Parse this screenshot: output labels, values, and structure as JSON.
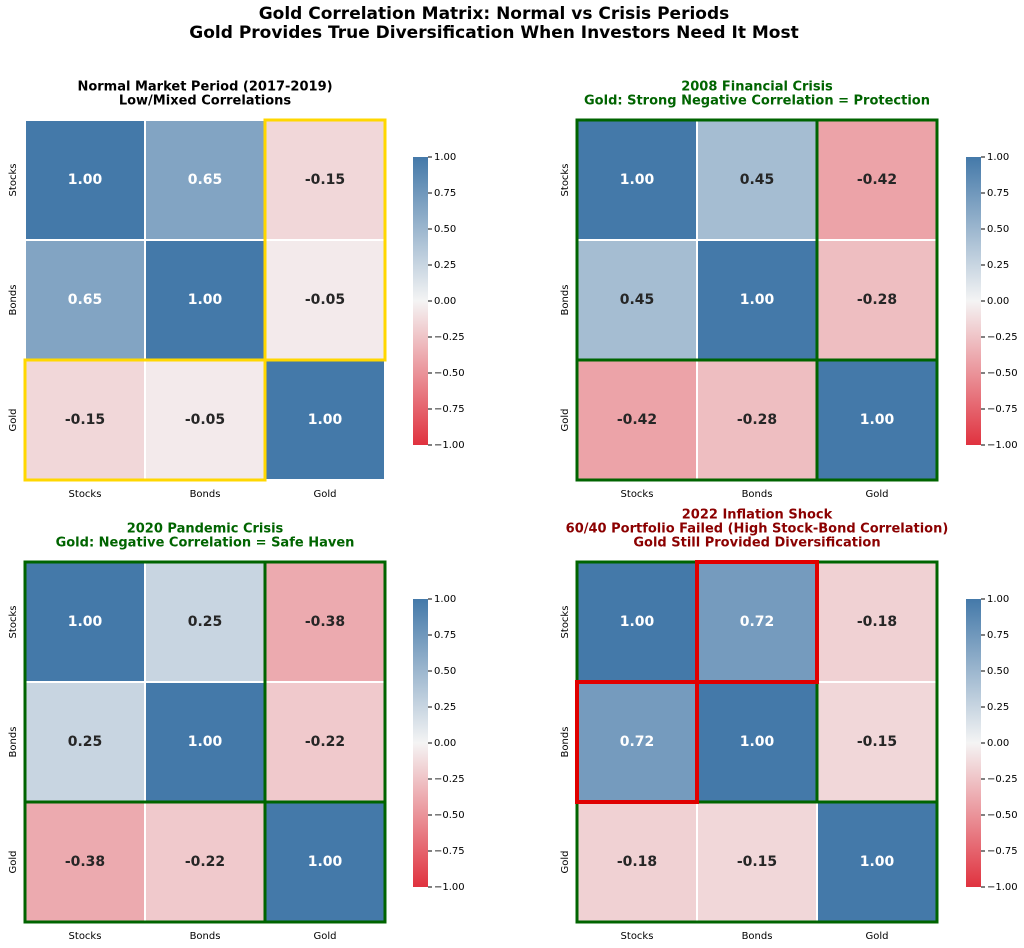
{
  "title": [
    "Gold Correlation Matrix: Normal vs Crisis Periods",
    "Gold Provides True Diversification When Investors Need It Most"
  ],
  "chart_data": [
    {
      "type": "heatmap",
      "title": [
        "Normal Market Period (2017-2019)",
        "Low/Mixed Correlations"
      ],
      "title_color": "#000000",
      "x": [
        "Stocks",
        "Bonds",
        "Gold"
      ],
      "y": [
        "Stocks",
        "Bonds",
        "Gold"
      ],
      "values": [
        [
          1,
          0.65,
          -0.15
        ],
        [
          0.65,
          1,
          -0.05
        ],
        [
          -0.15,
          -0.05,
          1
        ]
      ],
      "value_labels": [
        [
          "1.00",
          "0.65",
          "-0.15"
        ],
        [
          "0.65",
          "1.00",
          "-0.05"
        ],
        [
          "-0.15",
          "-0.05",
          "1.00"
        ]
      ],
      "colormap": [
        "#e0323f",
        "#f4f4f4",
        "#4479a9"
      ],
      "vlim": [
        -1,
        1
      ],
      "cbar_ticks": [
        {
          "value": 1,
          "label": "1.00"
        },
        {
          "value": 0.75,
          "label": "0.75"
        },
        {
          "value": 0.5,
          "label": "0.50"
        },
        {
          "value": 0.25,
          "label": "0.25"
        },
        {
          "value": 0,
          "label": "0.00"
        },
        {
          "value": -0.25,
          "label": "−0.25"
        },
        {
          "value": -0.5,
          "label": "−0.50"
        },
        {
          "value": -0.75,
          "label": "−0.75"
        },
        {
          "value": -1,
          "label": "−1.00"
        }
      ],
      "highlights": [
        {
          "color": "#ffd700",
          "rows": [
            0,
            1
          ],
          "cols": [
            2,
            2
          ]
        },
        {
          "color": "#ffd700",
          "rows": [
            2,
            2
          ],
          "cols": [
            0,
            1
          ]
        }
      ]
    },
    {
      "type": "heatmap",
      "title": [
        "2008 Financial Crisis",
        "Gold: Strong Negative Correlation = Protection"
      ],
      "title_color": "#006400",
      "x": [
        "Stocks",
        "Bonds",
        "Gold"
      ],
      "y": [
        "Stocks",
        "Bonds",
        "Gold"
      ],
      "values": [
        [
          1,
          0.45,
          -0.42
        ],
        [
          0.45,
          1,
          -0.28
        ],
        [
          -0.42,
          -0.28,
          1
        ]
      ],
      "value_labels": [
        [
          "1.00",
          "0.45",
          "-0.42"
        ],
        [
          "0.45",
          "1.00",
          "-0.28"
        ],
        [
          "-0.42",
          "-0.28",
          "1.00"
        ]
      ],
      "colormap": [
        "#e0323f",
        "#f4f4f4",
        "#4479a9"
      ],
      "vlim": [
        -1,
        1
      ],
      "cbar_ticks": [
        {
          "value": 1,
          "label": "1.00"
        },
        {
          "value": 0.75,
          "label": "0.75"
        },
        {
          "value": 0.5,
          "label": "0.50"
        },
        {
          "value": 0.25,
          "label": "0.25"
        },
        {
          "value": 0,
          "label": "0.00"
        },
        {
          "value": -0.25,
          "label": "−0.25"
        },
        {
          "value": -0.5,
          "label": "−0.50"
        },
        {
          "value": -0.75,
          "label": "−0.75"
        },
        {
          "value": -1,
          "label": "−1.00"
        }
      ],
      "highlights": [
        {
          "color": "#006400",
          "rows": [
            0,
            1
          ],
          "cols": [
            2,
            2
          ]
        },
        {
          "color": "#006400",
          "rows": [
            2,
            2
          ],
          "cols": [
            0,
            1
          ]
        },
        {
          "color": "#006400",
          "rows": [
            0,
            2
          ],
          "cols": [
            0,
            2
          ]
        }
      ]
    },
    {
      "type": "heatmap",
      "title": [
        "2020 Pandemic Crisis",
        "Gold: Negative Correlation = Safe Haven"
      ],
      "title_color": "#006400",
      "x": [
        "Stocks",
        "Bonds",
        "Gold"
      ],
      "y": [
        "Stocks",
        "Bonds",
        "Gold"
      ],
      "values": [
        [
          1,
          0.25,
          -0.38
        ],
        [
          0.25,
          1,
          -0.22
        ],
        [
          -0.38,
          -0.22,
          1
        ]
      ],
      "value_labels": [
        [
          "1.00",
          "0.25",
          "-0.38"
        ],
        [
          "0.25",
          "1.00",
          "-0.22"
        ],
        [
          "-0.38",
          "-0.22",
          "1.00"
        ]
      ],
      "colormap": [
        "#e0323f",
        "#f4f4f4",
        "#4479a9"
      ],
      "vlim": [
        -1,
        1
      ],
      "cbar_ticks": [
        {
          "value": 1,
          "label": "1.00"
        },
        {
          "value": 0.75,
          "label": "0.75"
        },
        {
          "value": 0.5,
          "label": "0.50"
        },
        {
          "value": 0.25,
          "label": "0.25"
        },
        {
          "value": 0,
          "label": "0.00"
        },
        {
          "value": -0.25,
          "label": "−0.25"
        },
        {
          "value": -0.5,
          "label": "−0.50"
        },
        {
          "value": -0.75,
          "label": "−0.75"
        },
        {
          "value": -1,
          "label": "−1.00"
        }
      ],
      "highlights": [
        {
          "color": "#006400",
          "rows": [
            0,
            1
          ],
          "cols": [
            2,
            2
          ]
        },
        {
          "color": "#006400",
          "rows": [
            2,
            2
          ],
          "cols": [
            0,
            1
          ]
        },
        {
          "color": "#006400",
          "rows": [
            0,
            2
          ],
          "cols": [
            0,
            2
          ]
        }
      ]
    },
    {
      "type": "heatmap",
      "title": [
        "2022 Inflation Shock",
        "60/40 Portfolio Failed (High Stock-Bond Correlation)",
        "Gold Still Provided Diversification"
      ],
      "title_color": "#8b0000",
      "x": [
        "Stocks",
        "Bonds",
        "Gold"
      ],
      "y": [
        "Stocks",
        "Bonds",
        "Gold"
      ],
      "values": [
        [
          1,
          0.72,
          -0.18
        ],
        [
          0.72,
          1,
          -0.15
        ],
        [
          -0.18,
          -0.15,
          1
        ]
      ],
      "value_labels": [
        [
          "1.00",
          "0.72",
          "-0.18"
        ],
        [
          "0.72",
          "1.00",
          "-0.15"
        ],
        [
          "-0.18",
          "-0.15",
          "1.00"
        ]
      ],
      "colormap": [
        "#e0323f",
        "#f4f4f4",
        "#4479a9"
      ],
      "vlim": [
        -1,
        1
      ],
      "cbar_ticks": [
        {
          "value": 1,
          "label": "1.00"
        },
        {
          "value": 0.75,
          "label": "0.75"
        },
        {
          "value": 0.5,
          "label": "0.50"
        },
        {
          "value": 0.25,
          "label": "0.25"
        },
        {
          "value": 0,
          "label": "0.00"
        },
        {
          "value": -0.25,
          "label": "−0.25"
        },
        {
          "value": -0.5,
          "label": "−0.50"
        },
        {
          "value": -0.75,
          "label": "−0.75"
        },
        {
          "value": -1,
          "label": "−1.00"
        }
      ],
      "highlights": [
        {
          "color": "#006400",
          "rows": [
            0,
            1
          ],
          "cols": [
            2,
            2
          ]
        },
        {
          "color": "#006400",
          "rows": [
            2,
            2
          ],
          "cols": [
            0,
            2
          ]
        },
        {
          "color": "#006400",
          "rows": [
            0,
            2
          ],
          "cols": [
            0,
            2
          ]
        },
        {
          "color": "#e00000",
          "rows": [
            0,
            0
          ],
          "cols": [
            1,
            1
          ]
        },
        {
          "color": "#e00000",
          "rows": [
            1,
            1
          ],
          "cols": [
            0,
            0
          ]
        }
      ]
    }
  ]
}
